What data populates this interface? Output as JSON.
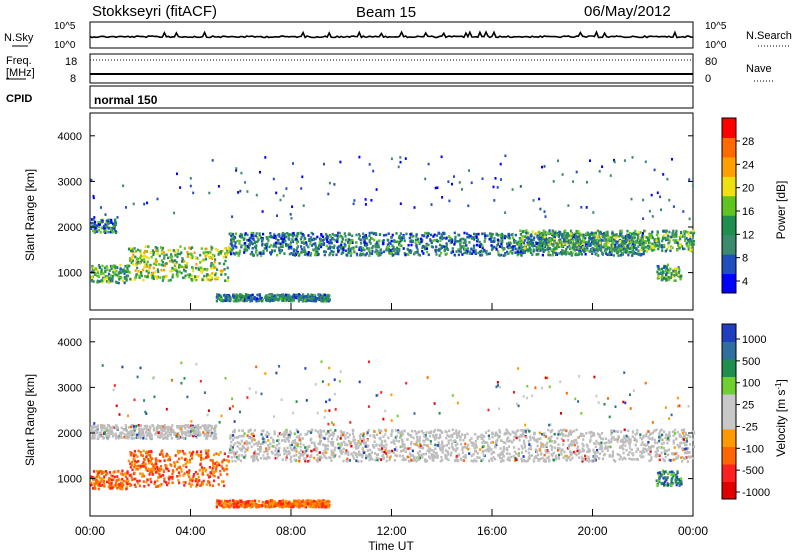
{
  "header": {
    "station": "Stokkseyri (fitACF)",
    "beam": "Beam 15",
    "date": "06/May/2012"
  },
  "noise_panel": {
    "left_label": "N.Sky",
    "right_label": "N.Search",
    "tick_top": "10^5",
    "tick_bottom": "10^0",
    "right_tick_top": "10^5",
    "right_tick_bottom": "10^0"
  },
  "freq_panel": {
    "left_label_line1": "Freq.",
    "left_label_line2": "[MHz]",
    "right_label": "Nave",
    "left_ticks": [
      "18",
      "8"
    ],
    "right_ticks": [
      "80",
      "0"
    ]
  },
  "cpid_panel": {
    "label": "CPID",
    "mode": "normal 150"
  },
  "colors": {
    "power_scale": [
      "#0000ff",
      "#1f4fbf",
      "#3a8a6e",
      "#1f8f4f",
      "#5fc41f",
      "#f0e010",
      "#ffa000",
      "#ff6a00",
      "#ff0000"
    ],
    "velocity_scale": [
      "#1f3fbf",
      "#2f6f9f",
      "#1f8f4f",
      "#6fcf2f",
      "#c8c8c8",
      "#c8c8c8",
      "#ff9900",
      "#ff6600",
      "#ff2020",
      "#e00000"
    ],
    "ground_scatter": "#bdbdbd"
  },
  "chart_data": [
    {
      "type": "heatmap",
      "title": "",
      "ylabel": "Slant Range [km]",
      "xlabel": "",
      "xlim": [
        "00:00",
        "24:00"
      ],
      "ylim": [
        180,
        4500
      ],
      "y_ticks": [
        "1000",
        "2000",
        "3000",
        "4000"
      ],
      "colorbar": {
        "label": "Power [dB]",
        "ticks": [
          "4",
          "8",
          "12",
          "16",
          "20",
          "24",
          "28"
        ],
        "range": [
          0,
          30
        ]
      },
      "scatter_regions": [
        {
          "start": "00:00",
          "end": "01:30",
          "range_km": [
            800,
            1200
          ],
          "value_db": 12
        },
        {
          "start": "01:30",
          "end": "05:30",
          "range_km": [
            850,
            1600
          ],
          "value_db": 14
        },
        {
          "start": "00:00",
          "end": "01:00",
          "range_km": [
            1900,
            2200
          ],
          "value_db": 6
        },
        {
          "start": "05:30",
          "end": "22:00",
          "range_km": [
            1400,
            1900
          ],
          "value_db": 6
        },
        {
          "start": "17:00",
          "end": "24:00",
          "range_km": [
            1500,
            1950
          ],
          "value_db": 10
        },
        {
          "start": "05:00",
          "end": "09:30",
          "range_km": [
            400,
            550
          ],
          "value_db": 8
        },
        {
          "start": "22:30",
          "end": "23:30",
          "range_km": [
            850,
            1200
          ],
          "value_db": 10
        }
      ]
    },
    {
      "type": "heatmap",
      "title": "",
      "ylabel": "Slant Range [km]",
      "xlabel": "Time UT",
      "xlim": [
        "00:00",
        "24:00"
      ],
      "ylim": [
        180,
        4500
      ],
      "y_ticks": [
        "1000",
        "2000",
        "3000",
        "4000"
      ],
      "x_ticks": [
        "00:00",
        "04:00",
        "08:00",
        "12:00",
        "16:00",
        "20:00",
        "00:00"
      ],
      "colorbar": {
        "label": "Velocity [m s^-1]",
        "ticks": [
          "1000",
          "500",
          "100",
          "25",
          "-25",
          "-100",
          "-500",
          "-1000"
        ],
        "range": [
          -1000,
          1000
        ]
      },
      "scatter_regions": [
        {
          "start": "00:00",
          "end": "01:30",
          "range_km": [
            800,
            1200
          ],
          "value_ms": -300
        },
        {
          "start": "01:30",
          "end": "05:30",
          "range_km": [
            850,
            1650
          ],
          "value_ms": -400
        },
        {
          "start": "00:00",
          "end": "05:00",
          "range_km": [
            1900,
            2200
          ],
          "value_ms": 0
        },
        {
          "start": "05:30",
          "end": "24:00",
          "range_km": [
            1400,
            2100
          ],
          "value_ms": 0
        },
        {
          "start": "05:00",
          "end": "09:30",
          "range_km": [
            400,
            550
          ],
          "value_ms": -50
        },
        {
          "start": "22:30",
          "end": "23:30",
          "range_km": [
            850,
            1200
          ],
          "value_ms": 500
        }
      ]
    }
  ]
}
